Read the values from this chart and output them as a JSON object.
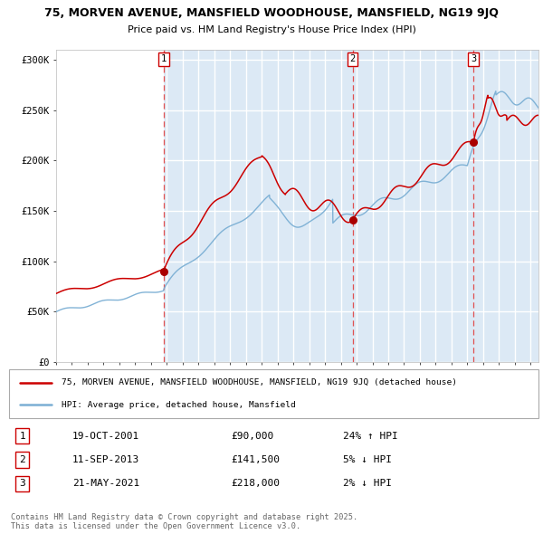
{
  "title_line1": "75, MORVEN AVENUE, MANSFIELD WOODHOUSE, MANSFIELD, NG19 9JQ",
  "title_line2": "Price paid vs. HM Land Registry's House Price Index (HPI)",
  "sale_events": [
    {
      "num": 1,
      "date_str": "19-OCT-2001",
      "date_x": 2001.8,
      "price": 90000,
      "pct": "24%",
      "dir": "↑"
    },
    {
      "num": 2,
      "date_str": "11-SEP-2013",
      "date_x": 2013.75,
      "price": 141500,
      "pct": "5%",
      "dir": "↓"
    },
    {
      "num": 3,
      "date_str": "21-MAY-2021",
      "date_x": 2021.38,
      "price": 218000,
      "pct": "2%",
      "dir": "↓"
    }
  ],
  "ylim": [
    0,
    310000
  ],
  "xlim": [
    1995.0,
    2025.5
  ],
  "yticks": [
    0,
    50000,
    100000,
    150000,
    200000,
    250000,
    300000
  ],
  "ytick_labels": [
    "£0",
    "£50K",
    "£100K",
    "£150K",
    "£200K",
    "£250K",
    "£300K"
  ],
  "bg_white": "#ffffff",
  "bg_blue": "#dce9f5",
  "grid_color": "#ffffff",
  "red_line_color": "#cc0000",
  "blue_line_color": "#7bafd4",
  "dashed_line_color": "#e05050",
  "marker_color": "#aa0000",
  "legend_label_red": "75, MORVEN AVENUE, MANSFIELD WOODHOUSE, MANSFIELD, NG19 9JQ (detached house)",
  "legend_label_blue": "HPI: Average price, detached house, Mansfield",
  "footer_text": "Contains HM Land Registry data © Crown copyright and database right 2025.\nThis data is licensed under the Open Government Licence v3.0.",
  "table_rows": [
    [
      "1",
      "19-OCT-2001",
      "£90,000",
      "24% ↑ HPI"
    ],
    [
      "2",
      "11-SEP-2013",
      "£141,500",
      "5% ↓ HPI"
    ],
    [
      "3",
      "21-MAY-2021",
      "£218,000",
      "2% ↓ HPI"
    ]
  ]
}
